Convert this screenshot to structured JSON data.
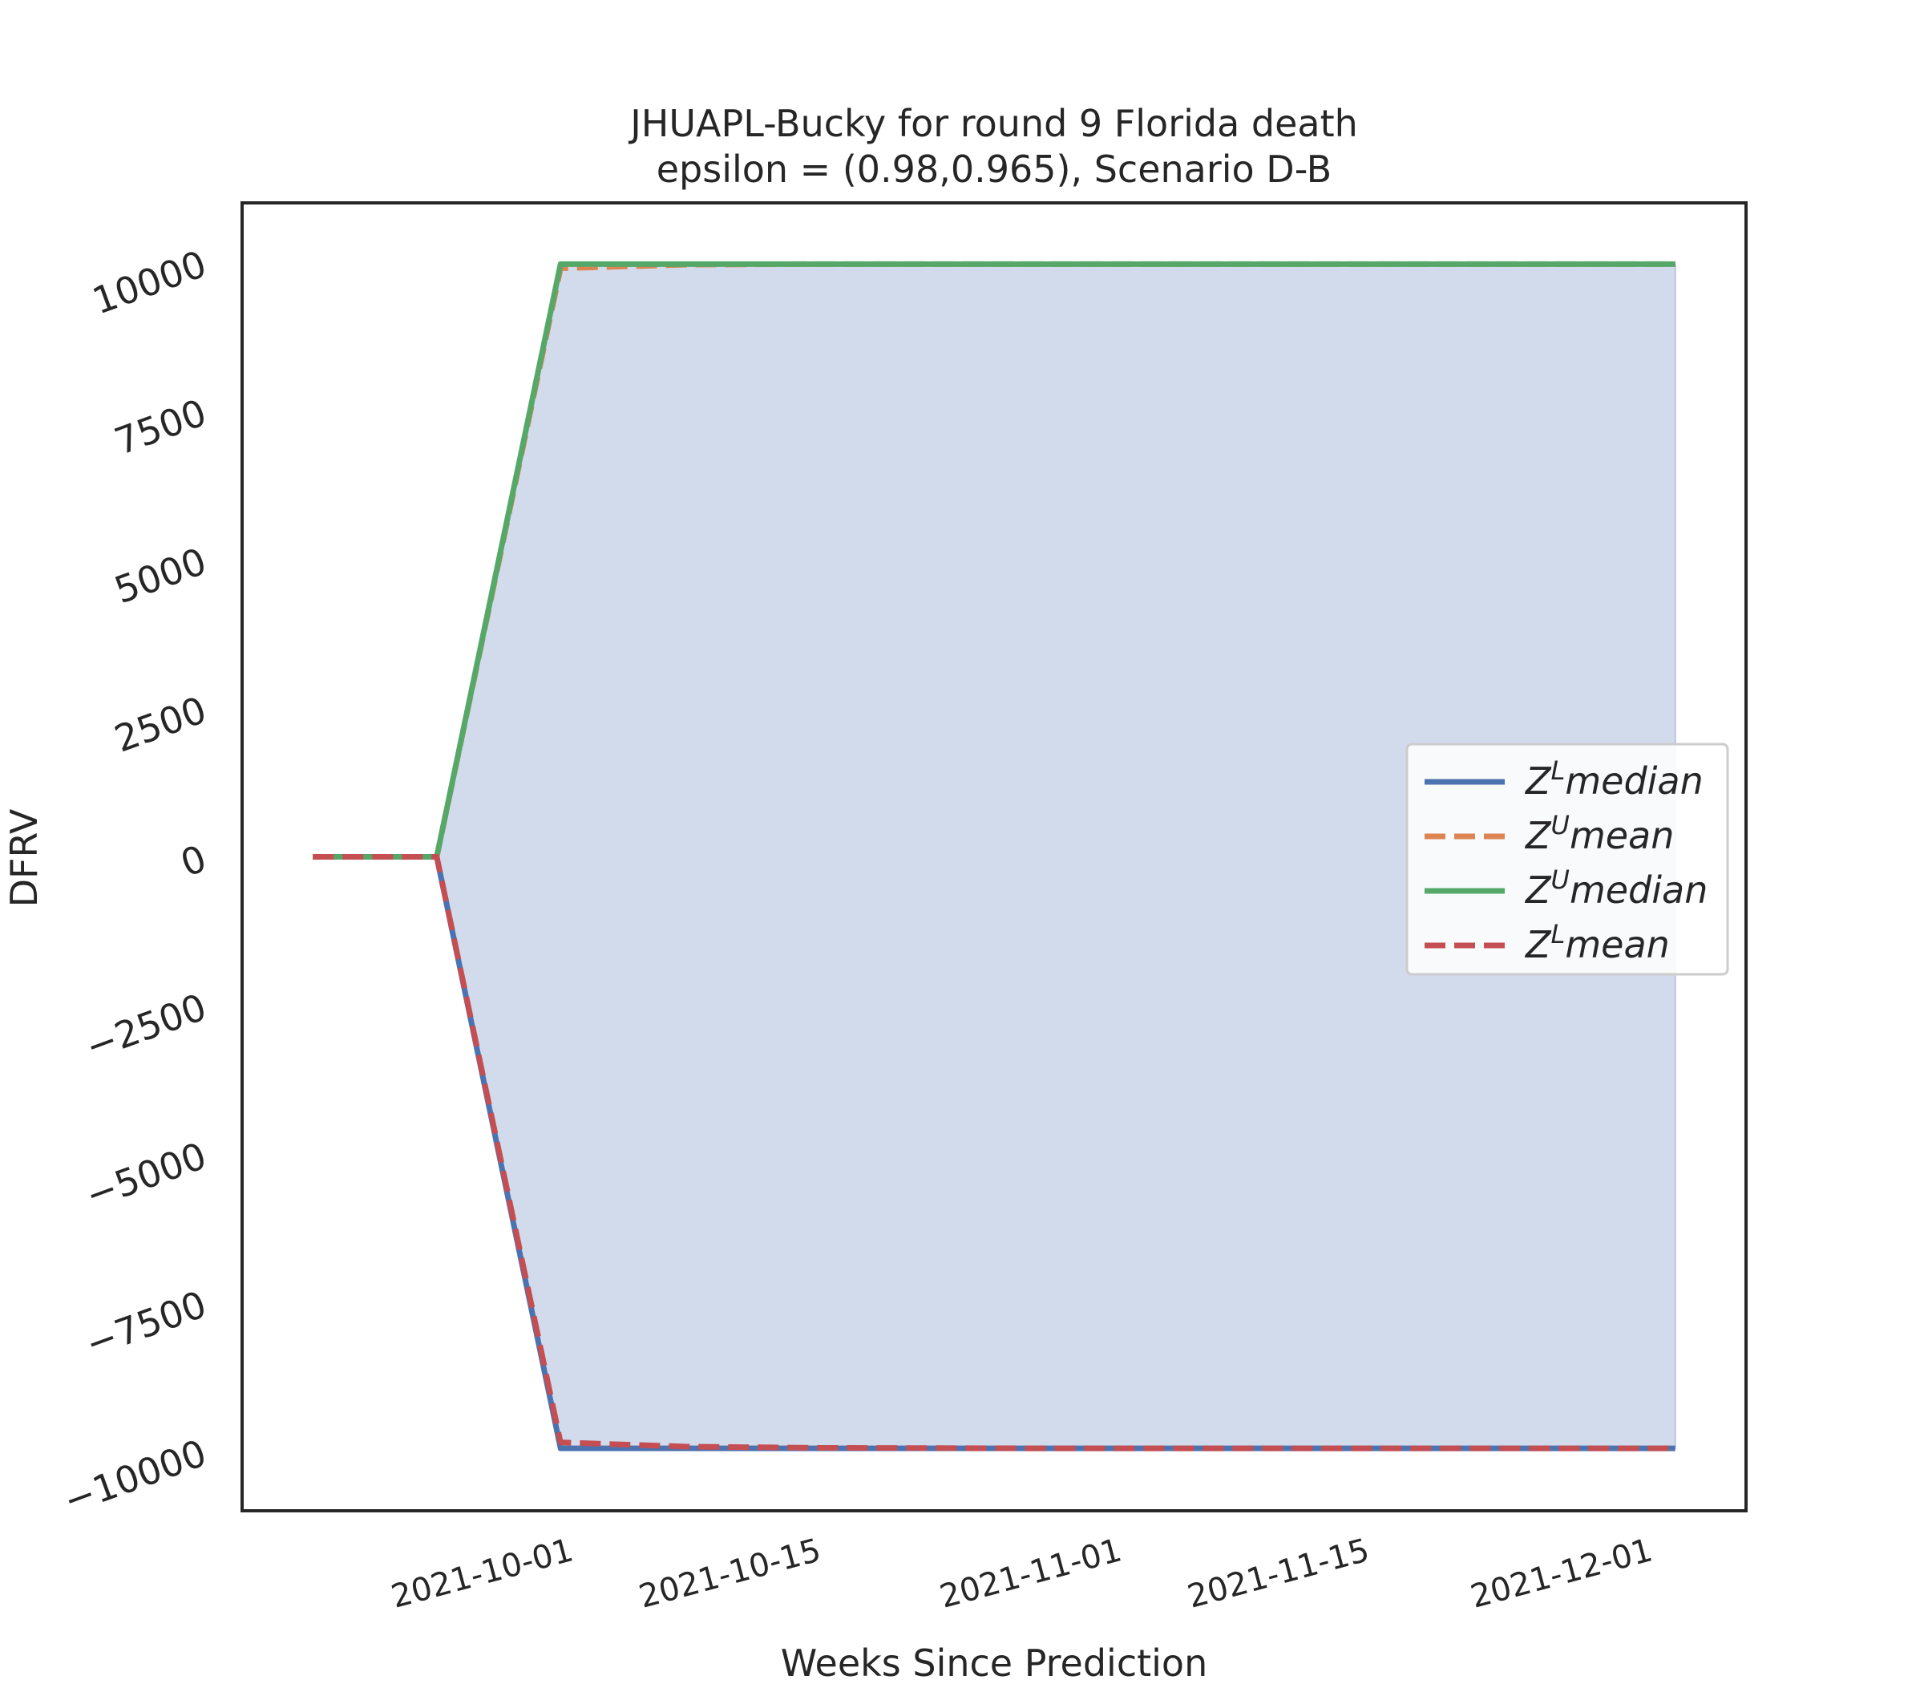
{
  "chart_data": {
    "type": "line",
    "title": "JHUAPL-Bucky for round 9 Florida  death",
    "subtitle": "epsilon = (0.98,0.965), Scenario D-B",
    "xlabel": "Weeks Since Prediction",
    "ylabel": "DFRV",
    "x": [
      "2021-09-18",
      "2021-09-25",
      "2021-10-02",
      "2021-10-09",
      "2021-10-16",
      "2021-10-23",
      "2021-10-30",
      "2021-11-06",
      "2021-11-13",
      "2021-11-20",
      "2021-11-27",
      "2021-12-04"
    ],
    "xlim": [
      "2021-09-14",
      "2021-12-08"
    ],
    "ylim": [
      -11000,
      11000
    ],
    "xticks": [
      "2021-10-01",
      "2021-10-15",
      "2021-11-01",
      "2021-11-15",
      "2021-12-01"
    ],
    "yticks": [
      10000,
      7500,
      5000,
      2500,
      0,
      -2500,
      -5000,
      -7500,
      -10000
    ],
    "grid": false,
    "legend_position": "center-right",
    "band": {
      "lower_series": "Z^L median",
      "upper_series": "Z^U median",
      "color": "#d2dbeb"
    },
    "series": [
      {
        "name": "Z^L median",
        "label_base": "Z",
        "label_sup": "L",
        "label_rest": "median",
        "style": "solid",
        "color": "#4c72b0",
        "values": [
          0,
          0,
          -9950,
          -9950,
          -9950,
          -9950,
          -9950,
          -9950,
          -9950,
          -9950,
          -9950,
          -9950
        ]
      },
      {
        "name": "Z^U mean",
        "label_base": "Z",
        "label_sup": "U",
        "label_rest": "mean",
        "style": "dashed",
        "color": "#dd8452",
        "values": [
          0,
          0,
          9900,
          9960,
          9970,
          9970,
          9970,
          9970,
          9970,
          9970,
          9970,
          9970
        ]
      },
      {
        "name": "Z^U median",
        "label_base": "Z",
        "label_sup": "U",
        "label_rest": "median",
        "style": "solid",
        "color": "#55a868",
        "values": [
          0,
          0,
          9970,
          9970,
          9970,
          9970,
          9970,
          9970,
          9970,
          9970,
          9970,
          9970
        ]
      },
      {
        "name": "Z^L mean",
        "label_base": "Z",
        "label_sup": "L",
        "label_rest": "mean",
        "style": "dashed",
        "color": "#c44e52",
        "values": [
          0,
          0,
          -9850,
          -9920,
          -9940,
          -9945,
          -9950,
          -9950,
          -9950,
          -9950,
          -9950,
          -9950
        ]
      }
    ]
  }
}
